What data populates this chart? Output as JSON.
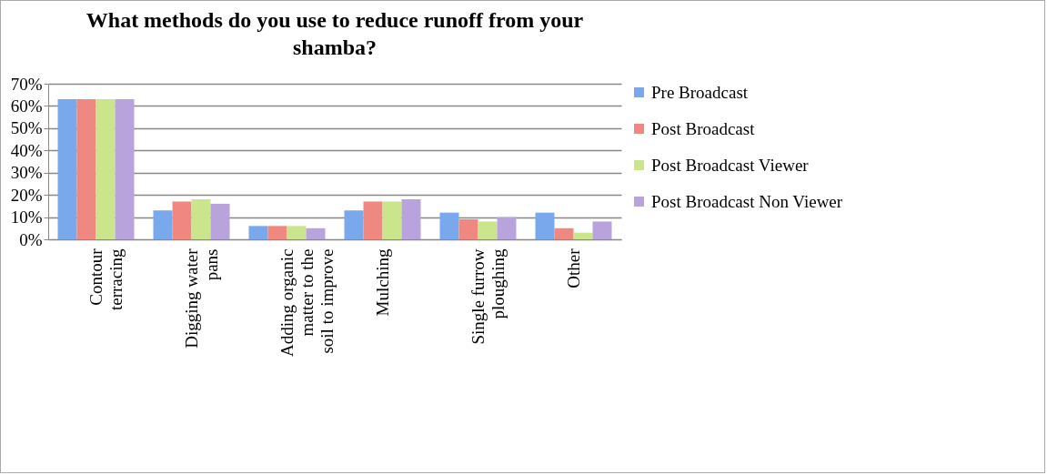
{
  "chart_data": {
    "type": "bar",
    "title": "What methods do you use to reduce runoff from your shamba?",
    "categories": [
      "Contour terracing",
      "Digging water pans",
      "Adding organic matter to the soil to improve",
      "Mulching",
      "Single furrow ploughing",
      "Other"
    ],
    "series": [
      {
        "name": "Pre Broadcast",
        "color": "#79a9ec",
        "values": [
          63,
          13,
          6,
          13,
          12,
          12
        ]
      },
      {
        "name": "Post Broadcast",
        "color": "#ef8880",
        "values": [
          63,
          17,
          6,
          17,
          9,
          5
        ]
      },
      {
        "name": "Post Broadcast Viewer",
        "color": "#cbe58c",
        "values": [
          63,
          18,
          6,
          17,
          8,
          3
        ]
      },
      {
        "name": "Post Broadcast Non Viewer",
        "color": "#b8a3dd",
        "values": [
          63,
          16,
          5,
          18,
          10,
          8
        ]
      }
    ],
    "ylim": [
      0,
      70
    ],
    "yticks": [
      {
        "value": 0,
        "label": "0%"
      },
      {
        "value": 10,
        "label": "10%"
      },
      {
        "value": 20,
        "label": "20%"
      },
      {
        "value": 30,
        "label": "30%"
      },
      {
        "value": 40,
        "label": "40%"
      },
      {
        "value": 50,
        "label": "50%"
      },
      {
        "value": 60,
        "label": "60%"
      },
      {
        "value": 70,
        "label": "70%"
      }
    ],
    "grid": "y",
    "legend": "right"
  }
}
